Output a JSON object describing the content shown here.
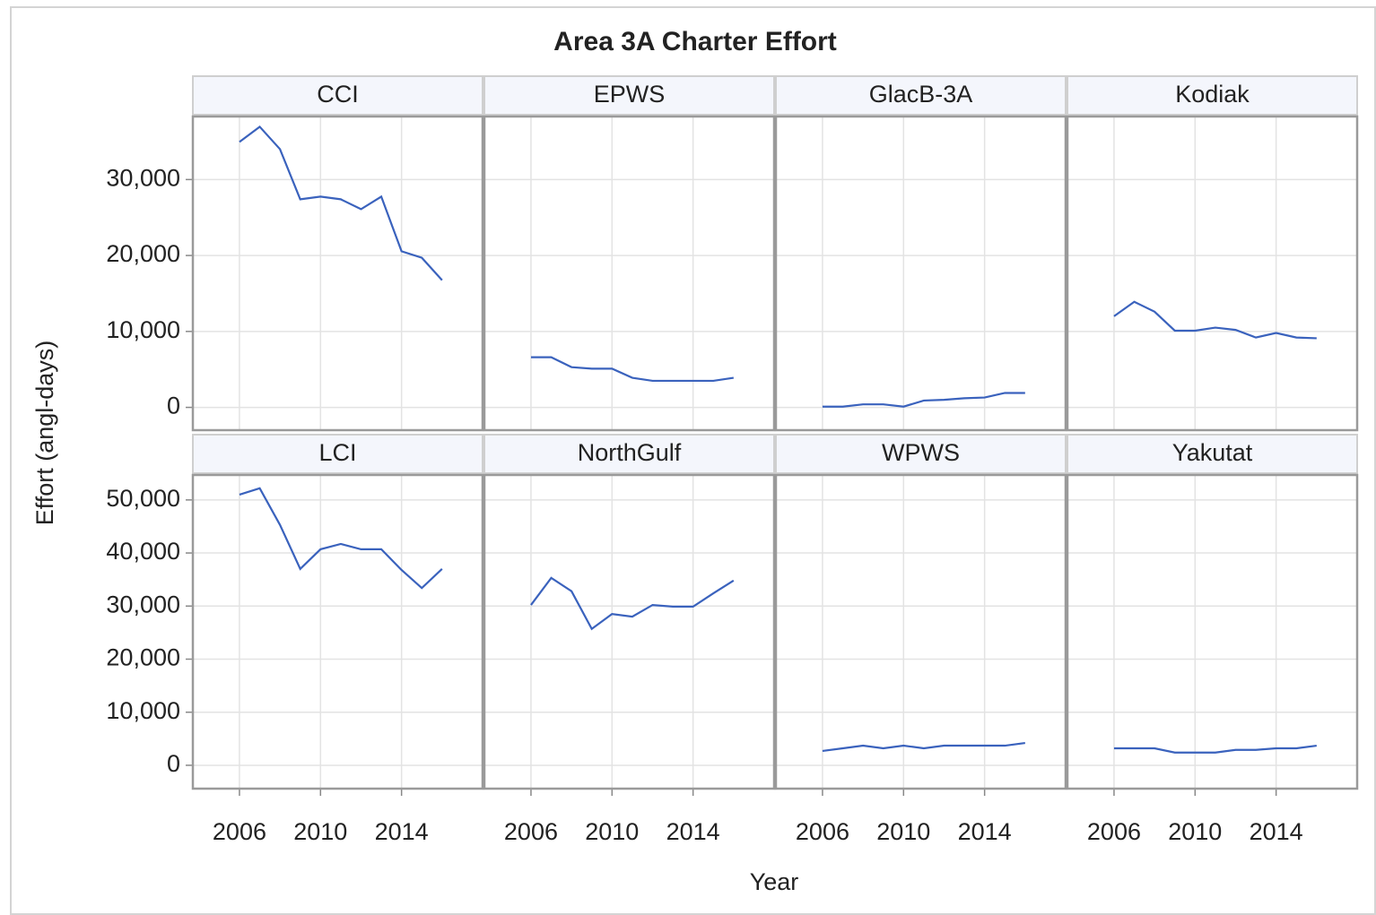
{
  "title": "Area 3A Charter Effort",
  "x_label": "Year",
  "y_label": "Effort (angl-days)",
  "chart_data": [
    {
      "type": "line",
      "title": "CCI",
      "color": "#3a62bd",
      "grid": true,
      "x": [
        2006,
        2007,
        2008,
        2009,
        2010,
        2011,
        2012,
        2013,
        2014,
        2015,
        2016
      ],
      "values": [
        34950,
        36950,
        34000,
        27400,
        27750,
        27400,
        26100,
        27750,
        20550,
        19700,
        16750
      ],
      "xlim": [
        2003.7,
        2018.0
      ],
      "xticks": [
        2006,
        2010,
        2014
      ],
      "ylim": [
        -3000,
        38300
      ],
      "yticks": [
        0,
        {
          "value": 10000,
          "label": "10,000"
        },
        {
          "value": 20000,
          "label": "20,000"
        },
        {
          "value": 30000,
          "label": "30,000"
        }
      ]
    },
    {
      "type": "line",
      "title": "EPWS",
      "color": "#3a62bd",
      "grid": true,
      "x": [
        2006,
        2007,
        2008,
        2009,
        2010,
        2011,
        2012,
        2013,
        2014,
        2015,
        2016
      ],
      "values": [
        6600,
        6600,
        5300,
        5100,
        5100,
        3900,
        3500,
        3500,
        3500,
        3500,
        3900
      ],
      "xlim": [
        2003.7,
        2018.0
      ],
      "xticks": [
        2006,
        2010,
        2014
      ],
      "ylim": [
        -3000,
        38300
      ],
      "yticks": [
        0,
        {
          "value": 10000,
          "label": "10,000"
        },
        {
          "value": 20000,
          "label": "20,000"
        },
        {
          "value": 30000,
          "label": "30,000"
        }
      ]
    },
    {
      "type": "line",
      "title": "GlacB-3A",
      "color": "#3a62bd",
      "grid": true,
      "x": [
        2006,
        2007,
        2008,
        2009,
        2010,
        2011,
        2012,
        2013,
        2014,
        2015,
        2016
      ],
      "values": [
        100,
        100,
        400,
        400,
        100,
        900,
        1000,
        1200,
        1300,
        1900,
        1900
      ],
      "xlim": [
        2003.7,
        2018.0
      ],
      "xticks": [
        2006,
        2010,
        2014
      ],
      "ylim": [
        -3000,
        38300
      ],
      "yticks": [
        0,
        {
          "value": 10000,
          "label": "10,000"
        },
        {
          "value": 20000,
          "label": "20,000"
        },
        {
          "value": 30000,
          "label": "30,000"
        }
      ]
    },
    {
      "type": "line",
      "title": "Kodiak",
      "color": "#3a62bd",
      "grid": true,
      "x": [
        2006,
        2007,
        2008,
        2009,
        2010,
        2011,
        2012,
        2013,
        2014,
        2015,
        2016
      ],
      "values": [
        12000,
        13900,
        12600,
        10100,
        10100,
        10500,
        10200,
        9200,
        9800,
        9200,
        9100
      ],
      "xlim": [
        2003.7,
        2018.0
      ],
      "xticks": [
        2006,
        2010,
        2014
      ],
      "ylim": [
        -3000,
        38300
      ],
      "yticks": [
        0,
        {
          "value": 10000,
          "label": "10,000"
        },
        {
          "value": 20000,
          "label": "20,000"
        },
        {
          "value": 30000,
          "label": "30,000"
        }
      ]
    },
    {
      "type": "line",
      "title": "LCI",
      "color": "#3a62bd",
      "grid": true,
      "x": [
        2006,
        2007,
        2008,
        2009,
        2010,
        2011,
        2012,
        2013,
        2014,
        2015,
        2016
      ],
      "values": [
        51000,
        52200,
        45300,
        37000,
        40700,
        41700,
        40700,
        40700,
        36800,
        33400,
        37000
      ],
      "xlim": [
        2003.7,
        2018.0
      ],
      "xticks": [
        2006,
        2010,
        2014
      ],
      "ylim": [
        -4400,
        54700
      ],
      "yticks": [
        0,
        {
          "value": 10000,
          "label": "10,000"
        },
        {
          "value": 20000,
          "label": "20,000"
        },
        {
          "value": 30000,
          "label": "30,000"
        },
        {
          "value": 40000,
          "label": "40,000"
        },
        {
          "value": 50000,
          "label": "50,000"
        }
      ]
    },
    {
      "type": "line",
      "title": "NorthGulf",
      "color": "#3a62bd",
      "grid": true,
      "x": [
        2006,
        2007,
        2008,
        2009,
        2010,
        2011,
        2012,
        2013,
        2014,
        2015,
        2016
      ],
      "values": [
        30200,
        35300,
        32800,
        25700,
        28500,
        28000,
        30200,
        29900,
        29900,
        32400,
        34800
      ],
      "xlim": [
        2003.7,
        2018.0
      ],
      "xticks": [
        2006,
        2010,
        2014
      ],
      "ylim": [
        -4400,
        54700
      ],
      "yticks": [
        0,
        {
          "value": 10000,
          "label": "10,000"
        },
        {
          "value": 20000,
          "label": "20,000"
        },
        {
          "value": 30000,
          "label": "30,000"
        },
        {
          "value": 40000,
          "label": "40,000"
        },
        {
          "value": 50000,
          "label": "50,000"
        }
      ]
    },
    {
      "type": "line",
      "title": "WPWS",
      "color": "#3a62bd",
      "grid": true,
      "x": [
        2006,
        2007,
        2008,
        2009,
        2010,
        2011,
        2012,
        2013,
        2014,
        2015,
        2016
      ],
      "values": [
        2700,
        3200,
        3700,
        3200,
        3700,
        3200,
        3700,
        3700,
        3700,
        3700,
        4200
      ],
      "xlim": [
        2003.7,
        2018.0
      ],
      "xticks": [
        2006,
        2010,
        2014
      ],
      "ylim": [
        -4400,
        54700
      ],
      "yticks": [
        0,
        {
          "value": 10000,
          "label": "10,000"
        },
        {
          "value": 20000,
          "label": "20,000"
        },
        {
          "value": 30000,
          "label": "30,000"
        },
        {
          "value": 40000,
          "label": "40,000"
        },
        {
          "value": 50000,
          "label": "50,000"
        }
      ]
    },
    {
      "type": "line",
      "title": "Yakutat",
      "color": "#3a62bd",
      "grid": true,
      "x": [
        2006,
        2007,
        2008,
        2009,
        2010,
        2011,
        2012,
        2013,
        2014,
        2015,
        2016
      ],
      "values": [
        3200,
        3200,
        3200,
        2400,
        2400,
        2400,
        2900,
        2900,
        3200,
        3200,
        3700
      ],
      "xlim": [
        2003.7,
        2018.0
      ],
      "xticks": [
        2006,
        2010,
        2014
      ],
      "ylim": [
        -4400,
        54700
      ],
      "yticks": [
        0,
        {
          "value": 10000,
          "label": "10,000"
        },
        {
          "value": 20000,
          "label": "20,000"
        },
        {
          "value": 30000,
          "label": "30,000"
        },
        {
          "value": 40000,
          "label": "40,000"
        },
        {
          "value": 50000,
          "label": "50,000"
        }
      ]
    }
  ]
}
